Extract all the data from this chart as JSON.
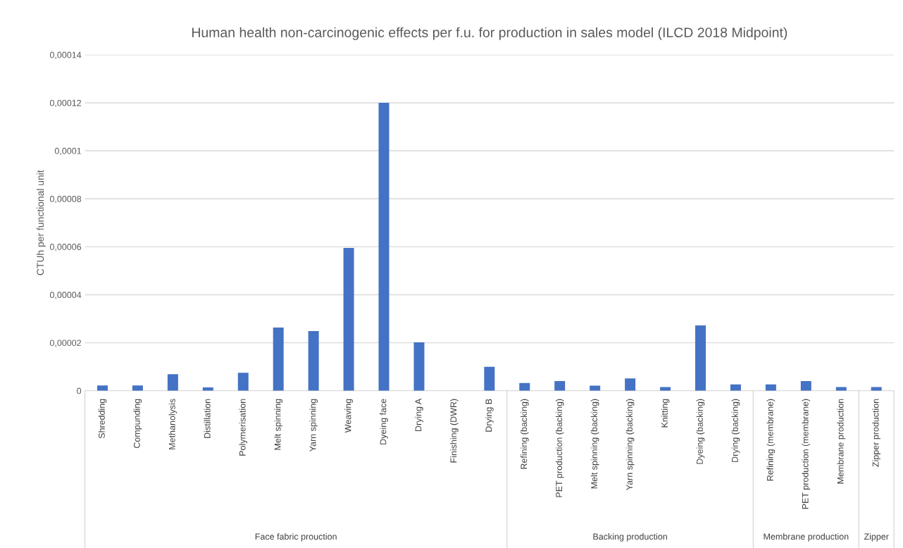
{
  "chart_data": {
    "type": "bar",
    "title": "Human health non-carcinogenic effects per f.u. for production in sales model (ILCD 2018 Midpoint)",
    "ylabel": "CTUh per functional unit",
    "categories": [
      "Shredding",
      "Compunding",
      "Methanolysis",
      "Distillation",
      "Polymerisation",
      "Melt spinning",
      "Yarn spinning",
      "Weaving",
      "Dyeing face",
      "Drying A",
      "Finishing (DWR)",
      "Drying B",
      "Refining (backing)",
      "PET production (backing)",
      "Melt spinning (backing)",
      "Yarn spinning (backing)",
      "Knitting",
      "Dyeing (backing)",
      "Drying (backing)",
      "Refining (membrane)",
      "PET production (membrane)",
      "Membrane production",
      "Zipper production"
    ],
    "values": [
      2.2e-06,
      2.2e-06,
      6.9e-06,
      1.4e-06,
      7.5e-06,
      2.63e-05,
      2.49e-05,
      5.95e-05,
      0.00012,
      2.02e-05,
      0,
      1e-05,
      3.2e-06,
      4e-06,
      2.1e-06,
      5.1e-06,
      1.5e-06,
      2.72e-05,
      2.6e-06,
      2.6e-06,
      4e-06,
      1.5e-06,
      1.5e-06
    ],
    "color": "#4472c4",
    "ylim": [
      0,
      0.00014
    ],
    "yticks": [
      {
        "value": 0,
        "label": "0"
      },
      {
        "value": 2e-05,
        "label": "0,00002"
      },
      {
        "value": 4e-05,
        "label": "0,00004"
      },
      {
        "value": 6e-05,
        "label": "0,00006"
      },
      {
        "value": 8e-05,
        "label": "0,00008"
      },
      {
        "value": 0.0001,
        "label": "0,0001"
      },
      {
        "value": 0.00012,
        "label": "0,00012"
      },
      {
        "value": 0.00014,
        "label": "0,00014"
      }
    ],
    "grid": "y",
    "annotations": [
      "Face fabric prouction",
      "Backing production",
      "Membrane production",
      "Zipper"
    ]
  }
}
